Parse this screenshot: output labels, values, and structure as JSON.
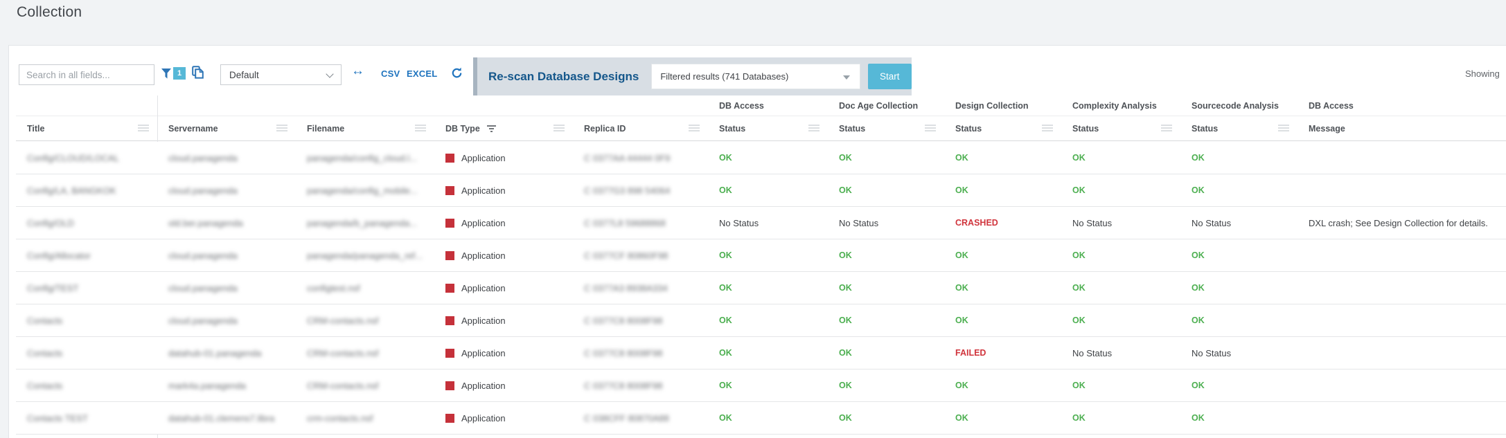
{
  "page": {
    "title": "Collection",
    "showing_label": "Showing"
  },
  "colors": {
    "accent_blue": "#1e73be",
    "panel_bg": "#d8dee4",
    "panel_label": "#15578b",
    "start_button": "#56b8d7",
    "status_ok": "#4caf50",
    "status_error": "#d0343c",
    "db_type_swatch": "#c5313a"
  },
  "toolbar": {
    "search_placeholder": "Search in all fields...",
    "filter_funnel_icon": "filter-funnel",
    "filter_badge_count": "1",
    "copy_icon": "copy",
    "view_select_value": "Default",
    "swap_icon": "↔",
    "csv_label": "CSV",
    "excel_label": "EXCEL",
    "refresh_icon": "refresh",
    "rescan": {
      "label": "Re-scan Database Designs",
      "target_select_value": "Filtered results (741 Databases)",
      "start_label": "Start"
    }
  },
  "grid": {
    "columns": [
      {
        "key": "title",
        "label": "Title",
        "group": "",
        "menu": true,
        "filtered": false
      },
      {
        "key": "servername",
        "label": "Servername",
        "group": "",
        "menu": true,
        "filtered": false
      },
      {
        "key": "filename",
        "label": "Filename",
        "group": "",
        "menu": true,
        "filtered": false
      },
      {
        "key": "db_type",
        "label": "DB Type",
        "group": "",
        "menu": true,
        "filtered": true
      },
      {
        "key": "replica_id",
        "label": "Replica ID",
        "group": "",
        "menu": true,
        "filtered": false
      },
      {
        "key": "s_db_access",
        "label": "Status",
        "group": "DB Access",
        "menu": true,
        "filtered": false
      },
      {
        "key": "s_doc_age",
        "label": "Status",
        "group": "Doc Age Collection",
        "menu": true,
        "filtered": false
      },
      {
        "key": "s_design",
        "label": "Status",
        "group": "Design Collection",
        "menu": true,
        "filtered": false
      },
      {
        "key": "s_complexity",
        "label": "Status",
        "group": "Complexity Analysis",
        "menu": true,
        "filtered": false
      },
      {
        "key": "s_sourcecode",
        "label": "Status",
        "group": "Sourcecode Analysis",
        "menu": true,
        "filtered": false
      },
      {
        "key": "message",
        "label": "Message",
        "group": "DB Access",
        "menu": false,
        "filtered": false
      }
    ],
    "redacted_fields": [
      "title",
      "servername",
      "filename",
      "replica_id"
    ],
    "rows": [
      {
        "title": "Config/CLOUD/LOCAL",
        "servername": "cloud.panagenda",
        "filename": "panagenda/config_cloud.l...",
        "db_type": "Application",
        "replica_id": "C 0377AA 44444 0F9",
        "s_db_access": "OK",
        "s_doc_age": "OK",
        "s_design": "OK",
        "s_complexity": "OK",
        "s_sourcecode": "OK",
        "message": ""
      },
      {
        "title": "Config/LA, BANGKOK",
        "servername": "cloud.panagenda",
        "filename": "panagenda/config_mobile...",
        "db_type": "Application",
        "replica_id": "C 0377G3 898 54064",
        "s_db_access": "OK",
        "s_doc_age": "OK",
        "s_design": "OK",
        "s_complexity": "OK",
        "s_sourcecode": "OK",
        "message": ""
      },
      {
        "title": "Config/OLD",
        "servername": "old.ber.panagenda",
        "filename": "panagenda/b_panagenda...",
        "db_type": "Application",
        "replica_id": "C 0377L8 59688868",
        "s_db_access": "No Status",
        "s_doc_age": "No Status",
        "s_design": "CRASHED",
        "s_complexity": "No Status",
        "s_sourcecode": "No Status",
        "message": "DXL crash; See Design Collection for details."
      },
      {
        "title": "Config/Allocator",
        "servername": "cloud.panagenda",
        "filename": "panagenda/panagenda_ref...",
        "db_type": "Application",
        "replica_id": "C 0377CF 80860F98",
        "s_db_access": "OK",
        "s_doc_age": "OK",
        "s_design": "OK",
        "s_complexity": "OK",
        "s_sourcecode": "OK",
        "message": ""
      },
      {
        "title": "Config/TEST",
        "servername": "cloud.panagenda",
        "filename": "configtest.nsf",
        "db_type": "Application",
        "replica_id": "C 0377A3 8938A334",
        "s_db_access": "OK",
        "s_doc_age": "OK",
        "s_design": "OK",
        "s_complexity": "OK",
        "s_sourcecode": "OK",
        "message": ""
      },
      {
        "title": "Contacts",
        "servername": "cloud.panagenda",
        "filename": "CRM-contacts.nsf",
        "db_type": "Application",
        "replica_id": "C 0377C8 8008F98",
        "s_db_access": "OK",
        "s_doc_age": "OK",
        "s_design": "OK",
        "s_complexity": "OK",
        "s_sourcecode": "OK",
        "message": ""
      },
      {
        "title": "Contacts",
        "servername": "datahub-01.panagenda",
        "filename": "CRM-contacts.nsf",
        "db_type": "Application",
        "replica_id": "C 0377C8 8008F98",
        "s_db_access": "OK",
        "s_doc_age": "OK",
        "s_design": "FAILED",
        "s_complexity": "No Status",
        "s_sourcecode": "No Status",
        "message": ""
      },
      {
        "title": "Contacts",
        "servername": "mark4a.panagenda",
        "filename": "CRM-contacts.nsf",
        "db_type": "Application",
        "replica_id": "C 0377C8 8008F98",
        "s_db_access": "OK",
        "s_doc_age": "OK",
        "s_design": "OK",
        "s_complexity": "OK",
        "s_sourcecode": "OK",
        "message": ""
      },
      {
        "title": "Contacts TEST",
        "servername": "datahub-01.clemens7.libra",
        "filename": "crm-contacts.nsf",
        "db_type": "Application",
        "replica_id": "C 038CFF 80870A88",
        "s_db_access": "OK",
        "s_doc_age": "OK",
        "s_design": "OK",
        "s_complexity": "OK",
        "s_sourcecode": "OK",
        "message": ""
      }
    ]
  }
}
